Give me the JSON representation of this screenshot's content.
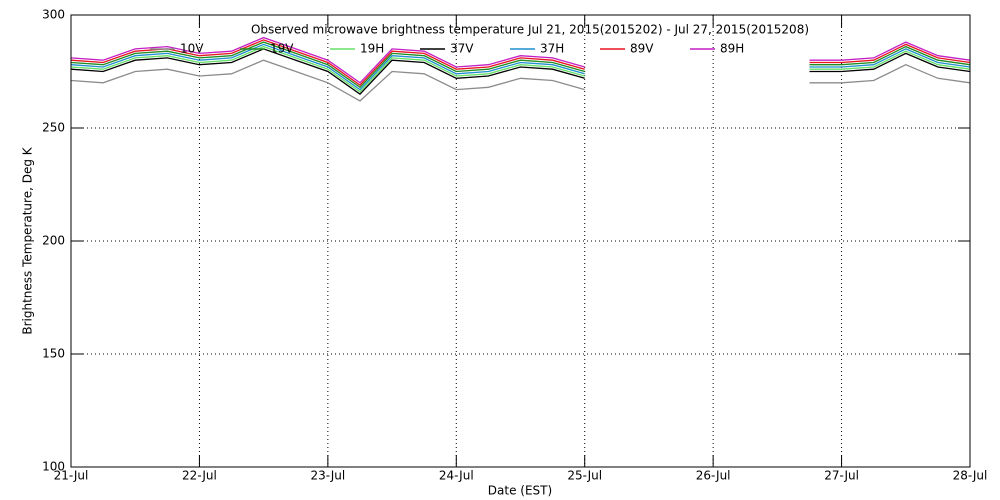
{
  "chart_data": {
    "type": "line",
    "title": "Observed microwave brightness temperature Jul 21, 2015(2015202) - Jul 27, 2015(2015208)",
    "xlabel": "Date (EST)",
    "ylabel": "Brightness Temperature, Deg K",
    "x": [
      21,
      21.25,
      21.5,
      21.75,
      22,
      22.25,
      22.5,
      22.75,
      23,
      23.25,
      23.5,
      23.75,
      24,
      24.25,
      24.5,
      24.75,
      25,
      26,
      26.75,
      27,
      27.25,
      27.5,
      27.75,
      28
    ],
    "xlim": [
      21,
      28
    ],
    "xticks": [
      {
        "value": 21,
        "label": "21-Jul"
      },
      {
        "value": 22,
        "label": "22-Jul"
      },
      {
        "value": 23,
        "label": "23-Jul"
      },
      {
        "value": 24,
        "label": "24-Jul"
      },
      {
        "value": 25,
        "label": "25-Jul"
      },
      {
        "value": 26,
        "label": "26-Jul"
      },
      {
        "value": 27,
        "label": "27-Jul"
      },
      {
        "value": 28,
        "label": "28-Jul"
      }
    ],
    "ylim": [
      100,
      300
    ],
    "yticks": [
      100,
      150,
      200,
      250,
      300
    ],
    "grid": true,
    "series": [
      {
        "name": "10V",
        "color": "#8c8c8c",
        "values": [
          271,
          270,
          275,
          276,
          273,
          274,
          280,
          275,
          270,
          262,
          275,
          274,
          267,
          268,
          272,
          271,
          267,
          null,
          270,
          270,
          271,
          278,
          272,
          270
        ]
      },
      {
        "name": "19V",
        "color": "#1e8c1e",
        "values": [
          279,
          278,
          283,
          284,
          281,
          282,
          288,
          283,
          278,
          268,
          283,
          282,
          275,
          276,
          280,
          279,
          275,
          null,
          278,
          278,
          279,
          286,
          280,
          278
        ]
      },
      {
        "name": "19H",
        "color": "#66e066",
        "values": [
          277,
          276,
          281,
          282,
          279,
          280,
          286,
          281,
          276,
          266,
          281,
          280,
          273,
          274,
          278,
          277,
          273,
          null,
          276,
          276,
          277,
          284,
          278,
          276
        ]
      },
      {
        "name": "37V",
        "color": "#000000",
        "values": [
          276,
          275,
          280,
          281,
          278,
          279,
          285,
          280,
          275,
          265,
          280,
          279,
          272,
          273,
          277,
          276,
          272,
          null,
          275,
          275,
          276,
          283,
          277,
          275
        ]
      },
      {
        "name": "37H",
        "color": "#1f8fcf",
        "values": [
          278,
          277,
          282,
          283,
          280,
          281,
          287,
          282,
          277,
          267,
          282,
          281,
          274,
          275,
          279,
          278,
          274,
          null,
          277,
          277,
          278,
          285,
          279,
          277
        ]
      },
      {
        "name": "89V",
        "color": "#e8141e",
        "values": [
          280,
          279,
          284,
          285,
          282,
          283,
          289,
          284,
          279,
          269,
          284,
          283,
          276,
          277,
          281,
          280,
          276,
          null,
          279,
          279,
          280,
          287,
          281,
          279
        ]
      },
      {
        "name": "89H",
        "color": "#c41ec4",
        "values": [
          281,
          280,
          285,
          286,
          283,
          284,
          290,
          285,
          280,
          270,
          285,
          284,
          277,
          278,
          282,
          281,
          277,
          null,
          280,
          280,
          281,
          288,
          282,
          280
        ]
      }
    ]
  }
}
